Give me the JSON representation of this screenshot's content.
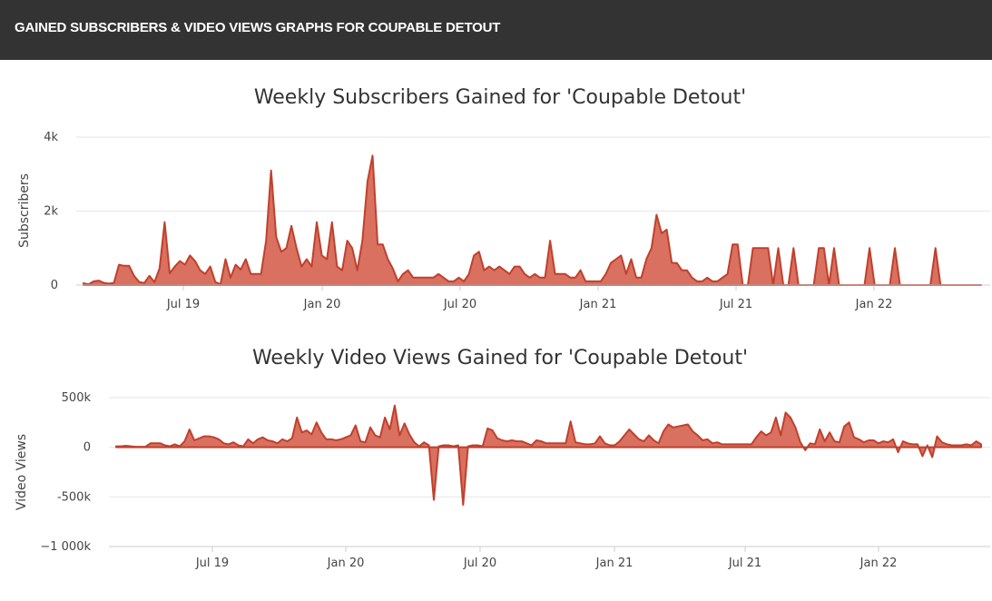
{
  "header": {
    "title": "GAINED SUBSCRIBERS & VIDEO VIEWS GRAPHS FOR COUPABLE DETOUT"
  },
  "colors": {
    "line": "#c0402c",
    "fill": "#d97060",
    "header_bg": "#333333"
  },
  "chart_data": [
    {
      "type": "area",
      "title": "Weekly Subscribers Gained for 'Coupable Detout'",
      "ylabel": "Subscribers",
      "xlabel": "",
      "ylim": [
        0,
        4000
      ],
      "yticks": [
        0,
        2000,
        4000
      ],
      "ytick_labels": [
        "0",
        "2k",
        "4k"
      ],
      "xticks": [
        "Jul 19",
        "Jan 20",
        "Jul 20",
        "Jan 21",
        "Jul 21",
        "Jan 22"
      ],
      "series": [
        {
          "name": "Subscribers",
          "values": [
            50,
            20,
            100,
            120,
            60,
            40,
            60,
            550,
            520,
            520,
            240,
            80,
            60,
            250,
            80,
            450,
            1700,
            320,
            500,
            650,
            550,
            800,
            650,
            400,
            300,
            500,
            80,
            20,
            700,
            200,
            550,
            420,
            700,
            300,
            300,
            300,
            1200,
            3100,
            1300,
            900,
            1000,
            1600,
            1000,
            500,
            700,
            500,
            1700,
            800,
            700,
            1700,
            500,
            400,
            1200,
            1000,
            400,
            1200,
            2800,
            3500,
            1100,
            1100,
            700,
            450,
            100,
            300,
            400,
            200,
            200,
            200,
            200,
            200,
            300,
            200,
            100,
            100,
            200,
            100,
            300,
            800,
            900,
            400,
            500,
            400,
            500,
            400,
            300,
            500,
            500,
            300,
            200,
            300,
            200,
            200,
            1200,
            300,
            300,
            300,
            200,
            200,
            400,
            100,
            100,
            100,
            100,
            300,
            600,
            700,
            800,
            300,
            700,
            200,
            200,
            700,
            1000,
            1900,
            1400,
            1500,
            600,
            600,
            400,
            400,
            200,
            100,
            100,
            200,
            100,
            100,
            200,
            300,
            1100,
            1100,
            0,
            0,
            1000,
            1000,
            1000,
            1000,
            0,
            1000,
            0,
            0,
            1000,
            0,
            0,
            0,
            0,
            1000,
            1000,
            0,
            1000,
            0,
            0,
            0,
            0,
            0,
            0,
            1000,
            0,
            0,
            0,
            0,
            1000,
            0,
            0,
            0,
            0,
            0,
            0,
            0,
            1000,
            0,
            0,
            0,
            0,
            0,
            0,
            0,
            0,
            0
          ]
        }
      ]
    },
    {
      "type": "area",
      "title": "Weekly Video Views Gained for 'Coupable Detout'",
      "ylabel": "Video Views",
      "xlabel": "",
      "ylim": [
        -1000000,
        500000
      ],
      "yticks": [
        -1000000,
        -500000,
        0,
        500000
      ],
      "ytick_labels": [
        "−1 000k",
        "-500k",
        "0",
        "500k"
      ],
      "xticks": [
        "Jul 19",
        "Jan 20",
        "Jul 20",
        "Jan 21",
        "Jul 21",
        "Jan 22"
      ],
      "series": [
        {
          "name": "Video Views",
          "values": [
            10000,
            10000,
            15000,
            10000,
            5000,
            5000,
            5000,
            40000,
            40000,
            40000,
            20000,
            10000,
            30000,
            10000,
            60000,
            180000,
            70000,
            90000,
            110000,
            110000,
            100000,
            80000,
            40000,
            30000,
            50000,
            20000,
            10000,
            80000,
            40000,
            80000,
            100000,
            70000,
            60000,
            40000,
            80000,
            60000,
            90000,
            300000,
            150000,
            170000,
            130000,
            250000,
            150000,
            80000,
            80000,
            70000,
            80000,
            100000,
            120000,
            220000,
            60000,
            50000,
            200000,
            120000,
            100000,
            300000,
            180000,
            420000,
            120000,
            240000,
            130000,
            50000,
            10000,
            50000,
            20000,
            -530000,
            10000,
            20000,
            20000,
            10000,
            20000,
            -580000,
            10000,
            20000,
            20000,
            10000,
            190000,
            170000,
            90000,
            70000,
            60000,
            70000,
            60000,
            60000,
            40000,
            20000,
            70000,
            60000,
            40000,
            40000,
            40000,
            40000,
            40000,
            260000,
            50000,
            40000,
            30000,
            30000,
            40000,
            110000,
            40000,
            20000,
            20000,
            60000,
            120000,
            180000,
            130000,
            80000,
            60000,
            120000,
            70000,
            40000,
            160000,
            230000,
            200000,
            210000,
            220000,
            230000,
            160000,
            120000,
            70000,
            80000,
            40000,
            50000,
            30000,
            30000,
            30000,
            30000,
            30000,
            30000,
            30000,
            100000,
            160000,
            120000,
            150000,
            300000,
            120000,
            350000,
            300000,
            200000,
            50000,
            -30000,
            40000,
            30000,
            180000,
            60000,
            150000,
            60000,
            50000,
            210000,
            250000,
            100000,
            80000,
            50000,
            70000,
            70000,
            40000,
            60000,
            50000,
            80000,
            -50000,
            60000,
            40000,
            30000,
            30000,
            -90000,
            20000,
            -100000,
            110000,
            50000,
            30000,
            20000,
            20000,
            20000,
            30000,
            20000,
            60000,
            30000
          ]
        }
      ]
    }
  ]
}
